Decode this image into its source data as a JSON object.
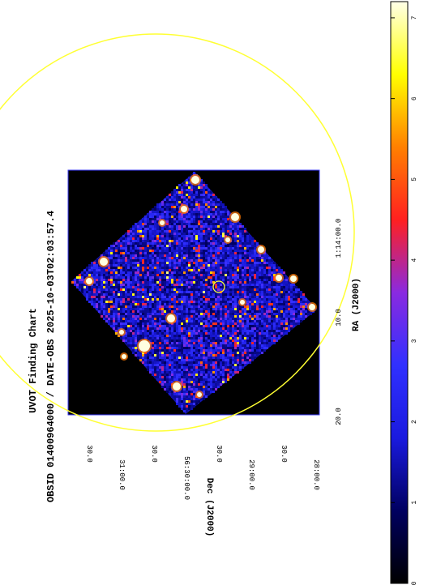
{
  "chart_data": {
    "type": "heatmap",
    "title": "UVOT Finding Chart",
    "subtitle": "OBSID 01400964000  /  DATE-OBS 2025-10-03T02:03:57.4",
    "xlabel": "RA (J2000)",
    "ylabel": "Dec (J2000)",
    "ra_ticks": [
      "20.0",
      "10.0",
      "1:14:00.0"
    ],
    "dec_ticks": [
      "28:00.0",
      "30.0",
      "29:00.0",
      "30.0",
      "56:30:00.0",
      "30.0",
      "31:00.0",
      "30.0"
    ],
    "colorbar": {
      "ticks": [
        "0",
        "1",
        "2",
        "3",
        "4",
        "5",
        "6",
        "7"
      ],
      "range": [
        0,
        7.2
      ],
      "colormap": [
        "#000000",
        "#000060",
        "#1a1adf",
        "#3030ff",
        "#8a2ae0",
        "#ff2020",
        "#ff8000",
        "#ffff00",
        "#ffffe8"
      ]
    },
    "overlays": [
      {
        "shape": "circle",
        "color": "#ffff33",
        "label": "large-region"
      },
      {
        "shape": "circle",
        "color": "#ffff33",
        "label": "source-marker"
      }
    ]
  }
}
